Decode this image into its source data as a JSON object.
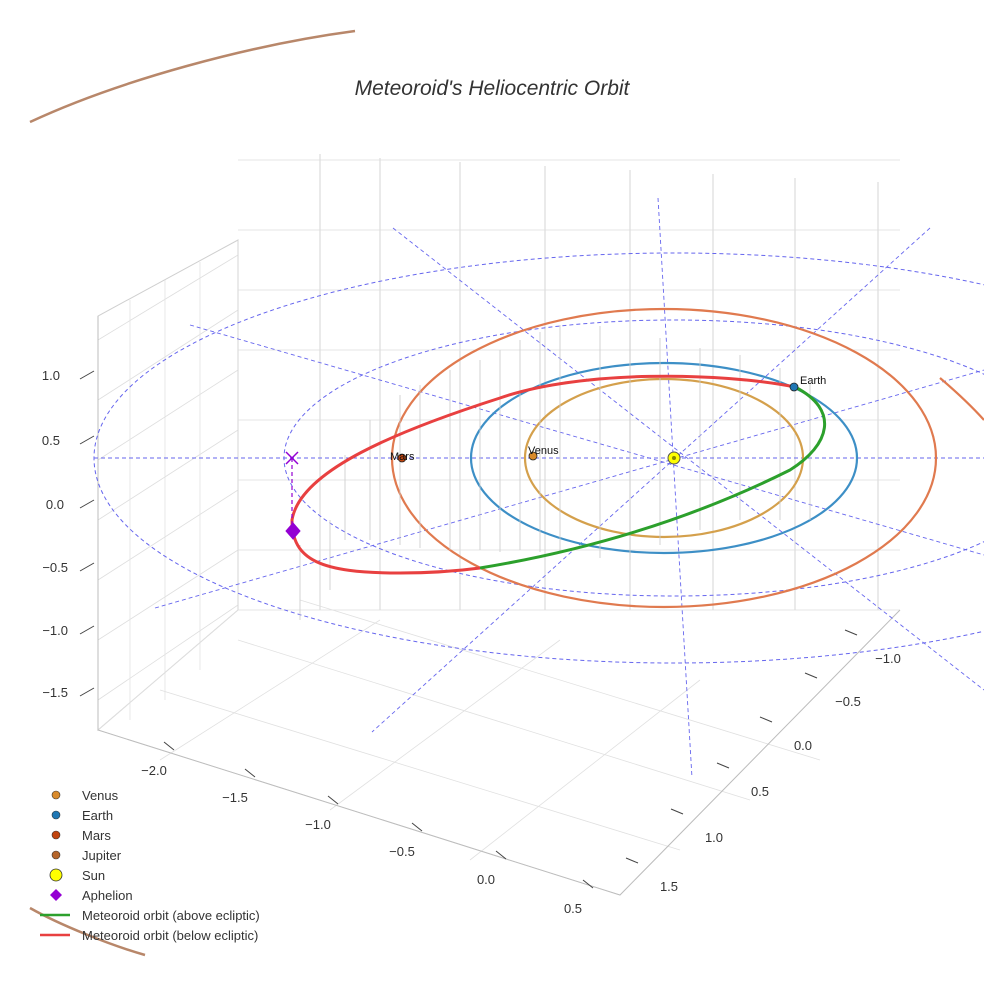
{
  "chart_data": {
    "type": "line",
    "title": "Meteoroid's Heliocentric Orbit",
    "projection": "3d",
    "xlim": [
      -2.3,
      0.6
    ],
    "ylim": [
      -1.3,
      1.8
    ],
    "zlim": [
      -1.8,
      1.3
    ],
    "x_ticks": [
      "−2.0",
      "−1.5",
      "−1.0",
      "−0.5",
      "0.0",
      "0.5"
    ],
    "y_ticks": [
      "−1.0",
      "−0.5",
      "0.0",
      "0.5",
      "1.0",
      "1.5"
    ],
    "z_ticks": [
      "1.0",
      "0.5",
      "0.0",
      "−0.5",
      "−1.0",
      "−1.5"
    ],
    "grid": true,
    "legend_position": "bottom-left",
    "orbits": [
      {
        "name": "Venus",
        "radius_au": 0.72,
        "color": "#d4a04c"
      },
      {
        "name": "Earth",
        "radius_au": 1.0,
        "color": "#3d8fc6"
      },
      {
        "name": "Mars",
        "radius_au": 1.52,
        "color": "#e07a4f"
      },
      {
        "name": "Jupiter",
        "radius_au": 5.2,
        "color": "#b8876a"
      }
    ],
    "bodies": [
      {
        "name": "Venus",
        "label": "Venus",
        "color": "#d98a2b"
      },
      {
        "name": "Earth",
        "label": "Earth",
        "color": "#1f77b4"
      },
      {
        "name": "Mars",
        "label": "Mars",
        "color": "#c1440e"
      },
      {
        "name": "Sun",
        "label": "",
        "color": "#ffff00"
      }
    ],
    "meteoroid": {
      "above_color": "#2ca02c",
      "below_color": "#e84040",
      "aphelion_color": "#9400d3"
    },
    "reference_color": "#6666ee",
    "legend": [
      {
        "label": "Venus",
        "marker": "circle",
        "color": "#d98a2b"
      },
      {
        "label": "Earth",
        "marker": "circle",
        "color": "#1f77b4"
      },
      {
        "label": "Mars",
        "marker": "circle",
        "color": "#c1440e"
      },
      {
        "label": "Jupiter",
        "marker": "circle",
        "color": "#b5652a"
      },
      {
        "label": "Sun",
        "marker": "circle-large",
        "color": "#ffff00"
      },
      {
        "label": "Aphelion",
        "marker": "diamond",
        "color": "#9400d3"
      },
      {
        "label": "Meteoroid orbit (above ecliptic)",
        "marker": "line",
        "color": "#2ca02c"
      },
      {
        "label": "Meteoroid orbit (below ecliptic)",
        "marker": "line",
        "color": "#e84040"
      }
    ]
  }
}
